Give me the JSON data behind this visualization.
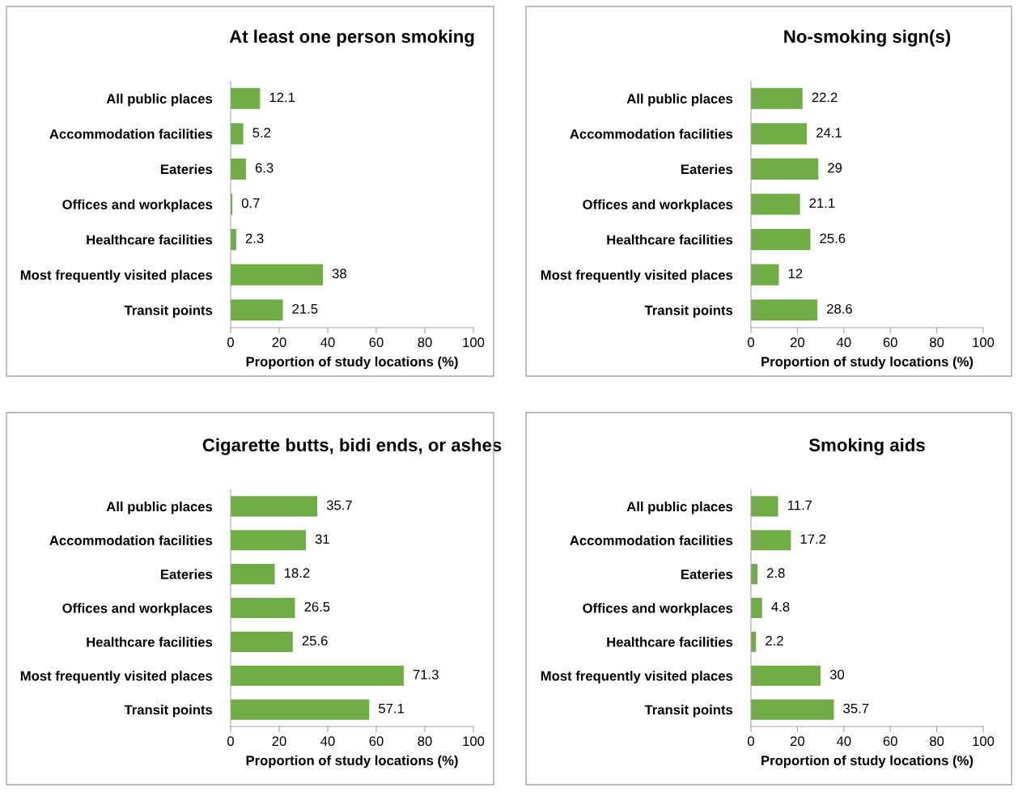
{
  "chart_data": [
    {
      "type": "bar",
      "orientation": "horizontal",
      "title": "At least one person smoking",
      "xlabel": "Proportion of study locations (%)",
      "categories": [
        "All public places",
        "Accommodation facilities",
        "Eateries",
        "Offices and workplaces",
        "Healthcare facilities",
        "Most frequently visited places",
        "Transit points"
      ],
      "values": [
        12.1,
        5.2,
        6.3,
        0.7,
        2.3,
        38,
        21.5
      ],
      "color": "#70ad47",
      "xlim": [
        0,
        100
      ],
      "xticks": [
        0,
        20,
        40,
        60,
        80,
        100
      ],
      "data_labels": true
    },
    {
      "type": "bar",
      "orientation": "horizontal",
      "title": "No-smoking sign(s)",
      "xlabel": "Proportion of study locations (%)",
      "categories": [
        "All public places",
        "Accommodation facilities",
        "Eateries",
        "Offices and workplaces",
        "Healthcare facilities",
        "Most frequently visited places",
        "Transit points"
      ],
      "values": [
        22.2,
        24.1,
        29,
        21.1,
        25.6,
        12,
        28.6
      ],
      "color": "#70ad47",
      "xlim": [
        0,
        100
      ],
      "xticks": [
        0,
        20,
        40,
        60,
        80,
        100
      ],
      "data_labels": true
    },
    {
      "type": "bar",
      "orientation": "horizontal",
      "title": "Cigarette butts, bidi ends, or ashes",
      "xlabel": "Proportion of study locations (%)",
      "categories": [
        "All public places",
        "Accommodation facilities",
        "Eateries",
        "Offices and workplaces",
        "Healthcare facilities",
        "Most frequently visited places",
        "Transit points"
      ],
      "values": [
        35.7,
        31,
        18.2,
        26.5,
        25.6,
        71.3,
        57.1
      ],
      "color": "#70ad47",
      "xlim": [
        0,
        100
      ],
      "xticks": [
        0,
        20,
        40,
        60,
        80,
        100
      ],
      "data_labels": true
    },
    {
      "type": "bar",
      "orientation": "horizontal",
      "title": "Smoking aids",
      "xlabel": "Proportion of study locations (%)",
      "categories": [
        "All public places",
        "Accommodation facilities",
        "Eateries",
        "Offices and workplaces",
        "Healthcare facilities",
        "Most frequently visited places",
        "Transit points"
      ],
      "values": [
        11.7,
        17.2,
        2.8,
        4.8,
        2.2,
        30,
        35.7
      ],
      "color": "#70ad47",
      "xlim": [
        0,
        100
      ],
      "xticks": [
        0,
        20,
        40,
        60,
        80,
        100
      ],
      "data_labels": true
    }
  ]
}
